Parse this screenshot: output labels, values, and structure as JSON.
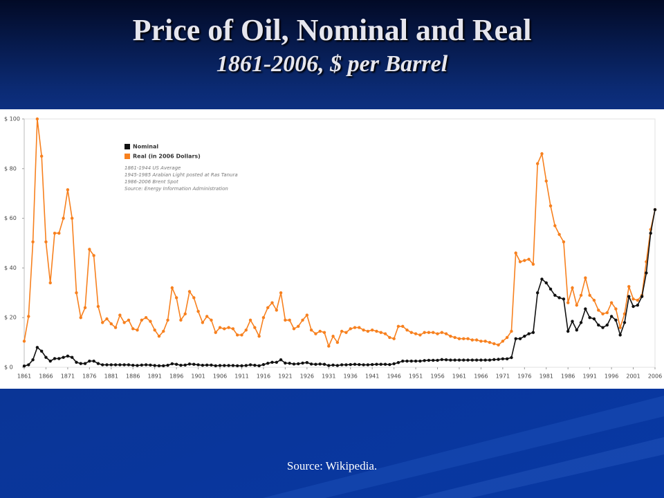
{
  "slide": {
    "title": "Price of Oil, Nominal and Real",
    "subtitle": "1861-2006, $ per Barrel",
    "source": "Source:  Wikipedia."
  },
  "chart_data": {
    "type": "line",
    "notes": [
      "1861-1944 US Average",
      "1945-1985 Arabian Light posted at Ras Tanura",
      "1986-2006 Brent Spot",
      "Source: Energy Information Administration"
    ],
    "x": [
      1861,
      1862,
      1863,
      1864,
      1865,
      1866,
      1867,
      1868,
      1869,
      1870,
      1871,
      1872,
      1873,
      1874,
      1875,
      1876,
      1877,
      1878,
      1879,
      1880,
      1881,
      1882,
      1883,
      1884,
      1885,
      1886,
      1887,
      1888,
      1889,
      1890,
      1891,
      1892,
      1893,
      1894,
      1895,
      1896,
      1897,
      1898,
      1899,
      1900,
      1901,
      1902,
      1903,
      1904,
      1905,
      1906,
      1907,
      1908,
      1909,
      1910,
      1911,
      1912,
      1913,
      1914,
      1915,
      1916,
      1917,
      1918,
      1919,
      1920,
      1921,
      1922,
      1923,
      1924,
      1925,
      1926,
      1927,
      1928,
      1929,
      1930,
      1931,
      1932,
      1933,
      1934,
      1935,
      1936,
      1937,
      1938,
      1939,
      1940,
      1941,
      1942,
      1943,
      1944,
      1945,
      1946,
      1947,
      1948,
      1949,
      1950,
      1951,
      1952,
      1953,
      1954,
      1955,
      1956,
      1957,
      1958,
      1959,
      1960,
      1961,
      1962,
      1963,
      1964,
      1965,
      1966,
      1967,
      1968,
      1969,
      1970,
      1971,
      1972,
      1973,
      1974,
      1975,
      1976,
      1977,
      1978,
      1979,
      1980,
      1981,
      1982,
      1983,
      1984,
      1985,
      1986,
      1987,
      1988,
      1989,
      1990,
      1991,
      1992,
      1993,
      1994,
      1995,
      1996,
      1997,
      1998,
      1999,
      2000,
      2001,
      2002,
      2003,
      2004,
      2005,
      2006
    ],
    "series": [
      {
        "name": "Real (in 2006 Dollars)",
        "color": "#f7801e",
        "values": [
          10.5,
          20.5,
          50.5,
          100,
          85,
          50.5,
          34,
          54,
          54,
          60,
          71.5,
          60,
          30,
          20,
          24,
          47.5,
          45,
          24.5,
          18,
          19.5,
          17.5,
          16,
          21,
          18,
          19,
          15.5,
          15,
          19,
          20,
          18.5,
          15,
          12.5,
          14.5,
          19,
          32,
          28,
          19,
          21.5,
          30.5,
          28,
          22.5,
          18,
          20.5,
          19,
          14,
          16,
          15.5,
          16,
          15.5,
          13,
          13,
          15,
          19,
          16,
          12.5,
          20,
          24,
          26,
          23,
          30,
          19,
          19,
          15.5,
          16.5,
          19,
          21,
          15,
          13.5,
          14.5,
          14,
          8.5,
          12.5,
          10,
          14.5,
          14,
          15.5,
          16,
          16,
          15,
          14.5,
          15,
          14.5,
          14,
          13.5,
          12,
          11.5,
          16.5,
          16.5,
          15,
          14,
          13.5,
          13,
          14,
          14,
          14,
          13.5,
          14,
          13.5,
          12.5,
          12,
          11.5,
          11.5,
          11.5,
          11,
          11,
          10.5,
          10.5,
          10,
          9.5,
          9,
          10.5,
          12,
          14.5,
          46,
          42.5,
          43,
          43.5,
          41.5,
          82,
          86,
          75,
          65,
          57,
          53.5,
          50.5,
          26,
          32,
          25,
          29,
          36,
          29,
          27,
          23,
          21.5,
          22,
          26,
          23.5,
          16,
          21.5,
          32.5,
          27.5,
          27,
          29,
          42.5,
          55.5,
          63.5
        ]
      },
      {
        "name": "Nominal",
        "color": "#111111",
        "values": [
          0.5,
          1,
          3,
          8,
          6.5,
          4,
          2.5,
          3.5,
          3.5,
          4,
          4.5,
          4,
          2,
          1.5,
          1.5,
          2.5,
          2.5,
          1.5,
          1,
          1,
          1,
          1,
          1,
          1,
          1,
          0.8,
          0.7,
          0.9,
          1,
          0.9,
          0.7,
          0.6,
          0.6,
          0.8,
          1.4,
          1.2,
          0.8,
          0.9,
          1.3,
          1.2,
          1,
          0.8,
          0.9,
          0.9,
          0.6,
          0.7,
          0.7,
          0.7,
          0.7,
          0.6,
          0.6,
          0.7,
          1,
          0.8,
          0.6,
          1.1,
          1.6,
          2,
          2,
          3,
          1.7,
          1.6,
          1.3,
          1.4,
          1.7,
          1.9,
          1.3,
          1.2,
          1.3,
          1.2,
          0.7,
          0.9,
          0.7,
          1,
          1,
          1.1,
          1.2,
          1.1,
          1,
          1,
          1.1,
          1.2,
          1.2,
          1.2,
          1.1,
          1.4,
          1.9,
          2.5,
          2.5,
          2.5,
          2.5,
          2.5,
          2.7,
          2.8,
          2.8,
          2.8,
          3.1,
          3,
          2.9,
          2.9,
          2.9,
          2.9,
          2.9,
          2.9,
          2.9,
          2.9,
          2.9,
          2.9,
          3.1,
          3.2,
          3.4,
          3.4,
          3.9,
          11.5,
          11.5,
          12.5,
          13.5,
          14,
          30,
          35.5,
          34,
          31.5,
          29,
          28,
          27.5,
          14.5,
          18.5,
          15,
          18,
          23.5,
          20,
          19.5,
          17,
          16,
          17,
          20.5,
          19,
          13,
          18,
          28.5,
          24.5,
          25,
          28.5,
          38,
          54,
          63.5
        ]
      }
    ],
    "legend_order": [
      1,
      0
    ],
    "xlim": [
      1861,
      2006
    ],
    "xticks": [
      1861,
      1866,
      1871,
      1876,
      1881,
      1886,
      1891,
      1896,
      1901,
      1906,
      1911,
      1916,
      1921,
      1926,
      1931,
      1936,
      1941,
      1946,
      1951,
      1956,
      1961,
      1966,
      1971,
      1976,
      1981,
      1986,
      1991,
      1996,
      2001,
      2006
    ],
    "ylim": [
      0,
      100
    ],
    "yticks": [
      {
        "value": 0,
        "label": "$ 0"
      },
      {
        "value": 20,
        "label": "$ 20"
      },
      {
        "value": 40,
        "label": "$ 40"
      },
      {
        "value": 60,
        "label": "$ 60"
      },
      {
        "value": 80,
        "label": "$ 80"
      },
      {
        "value": 100,
        "label": "$ 100"
      }
    ]
  }
}
